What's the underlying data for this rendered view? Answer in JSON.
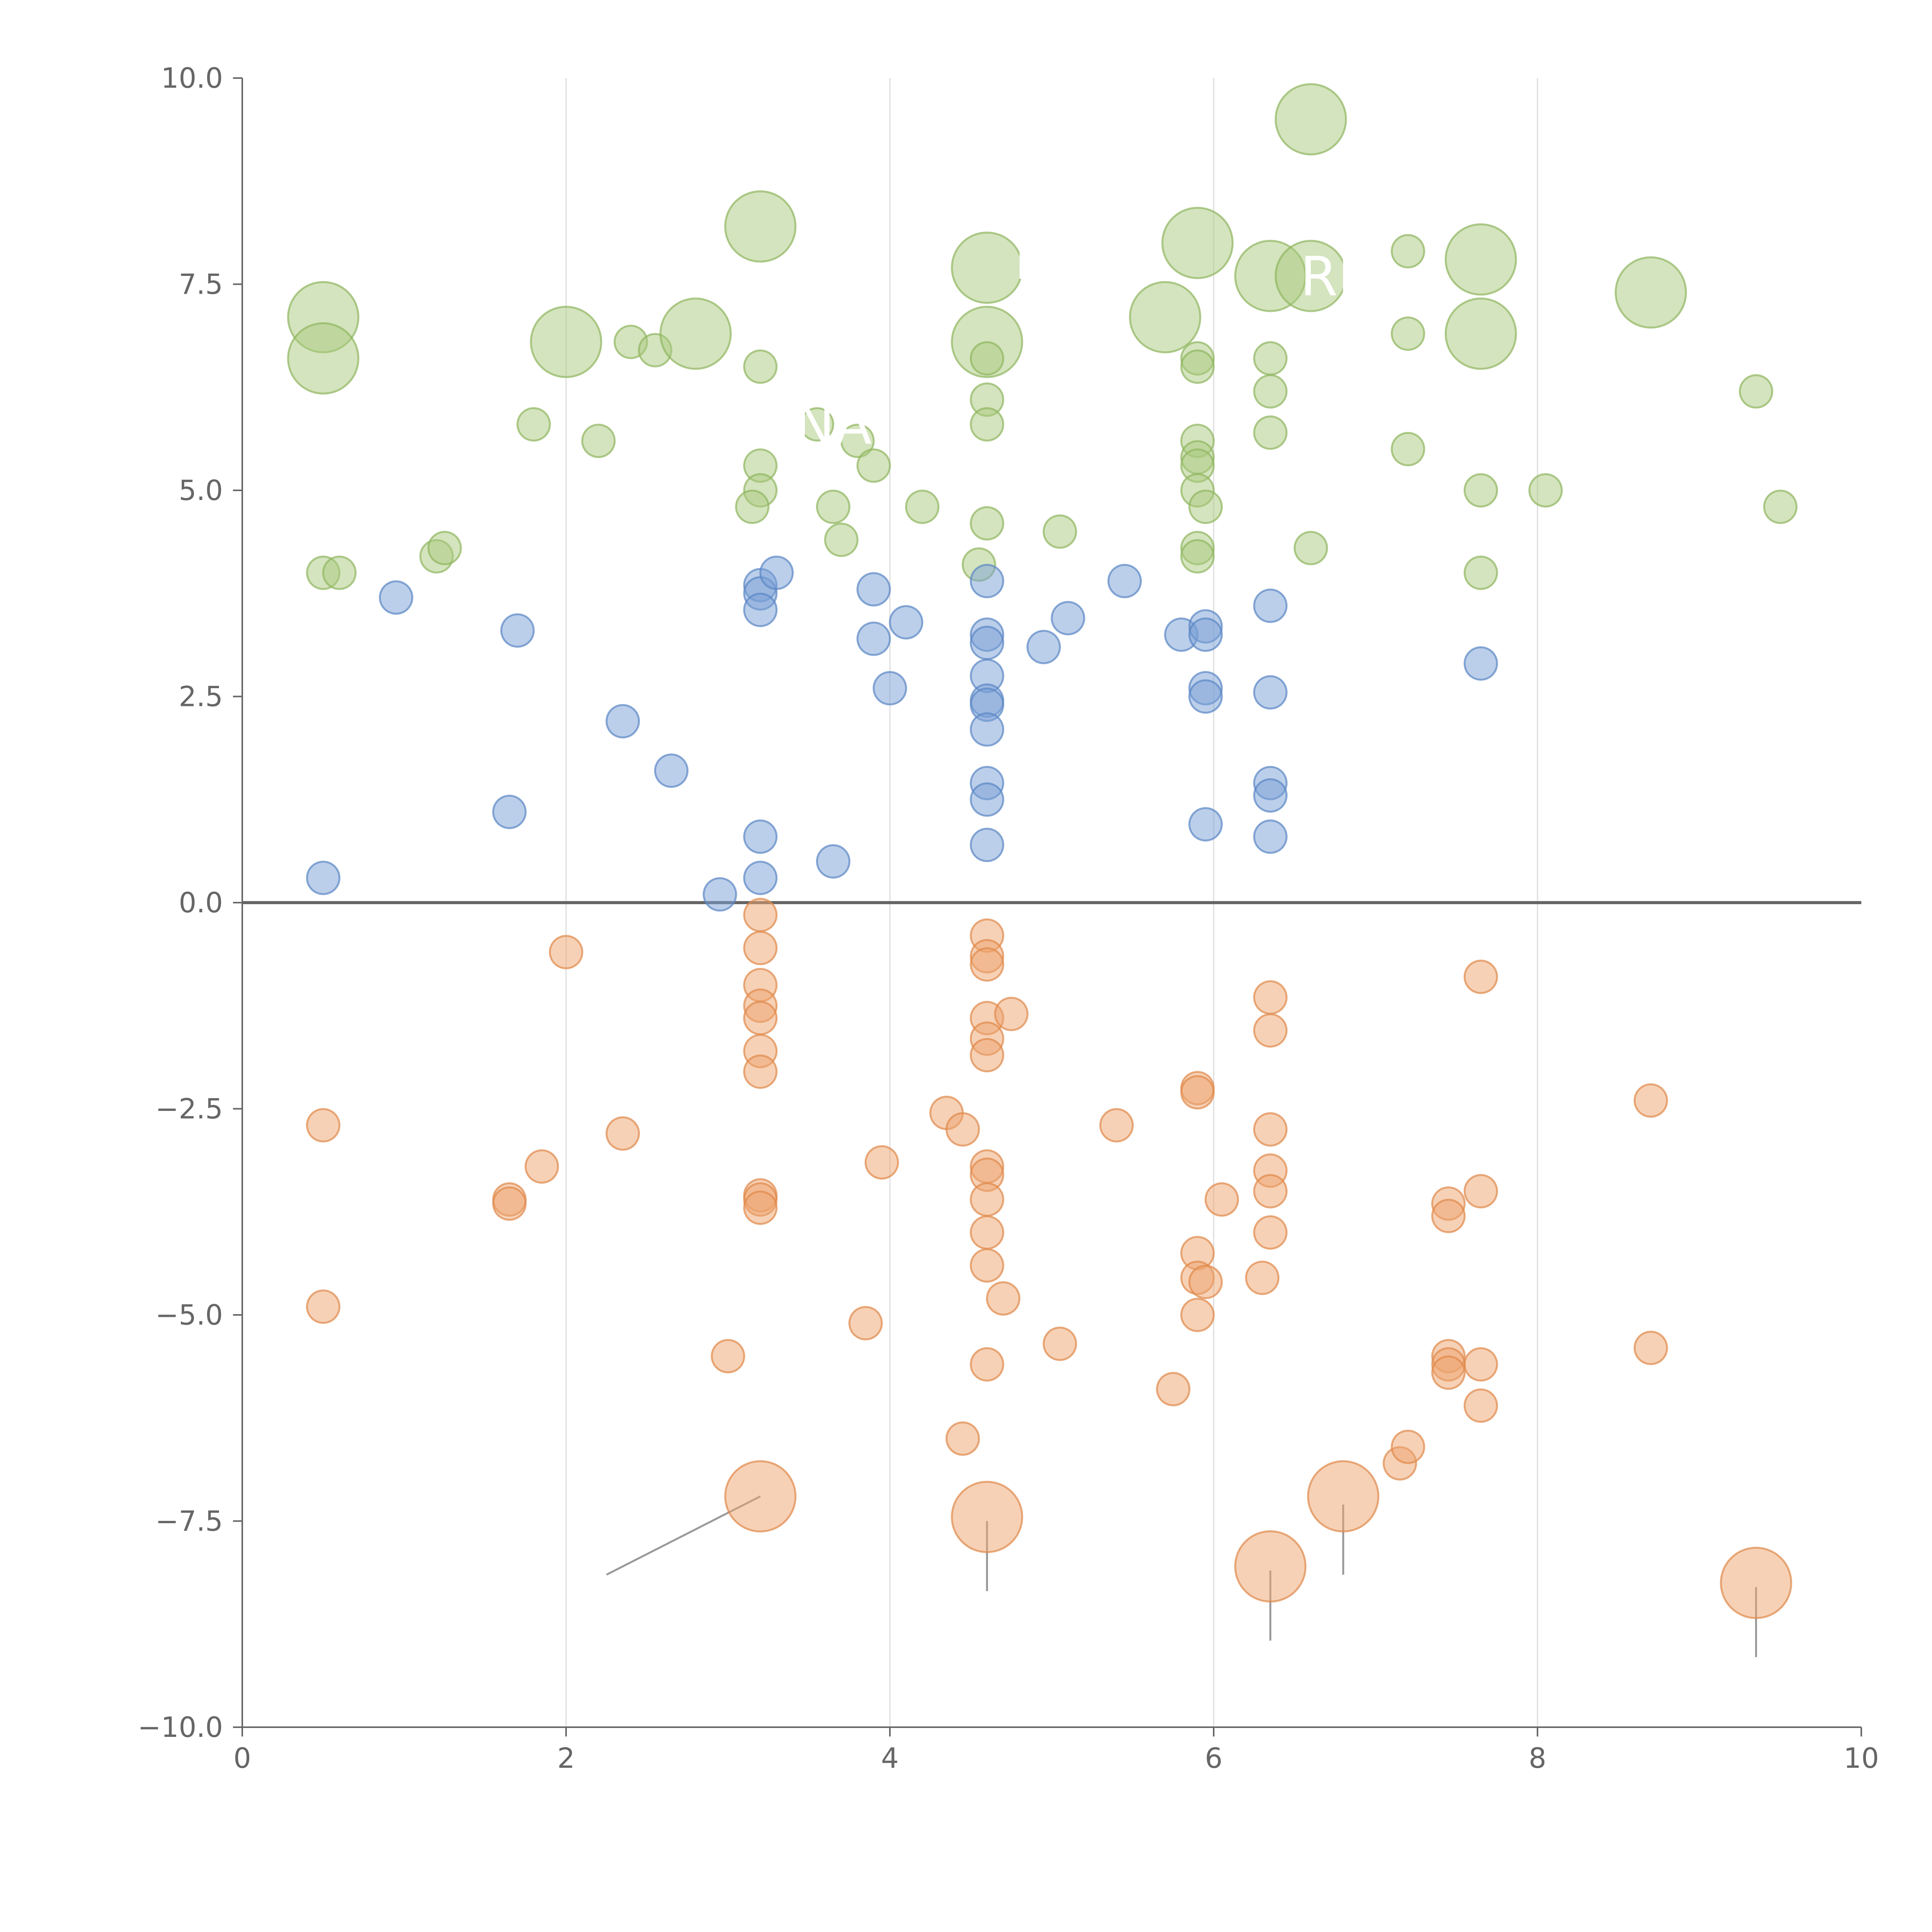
{
  "chart_data": {
    "type": "scatter",
    "title": "",
    "xlabel": "",
    "ylabel": "",
    "xlim": [
      0,
      10
    ],
    "ylim": [
      -10,
      10
    ],
    "x_ticks": [
      0,
      2,
      4,
      6,
      8,
      10
    ],
    "x_tick_labels": [
      "0",
      "2",
      "4",
      "6",
      "8",
      "10"
    ],
    "y_ticks": [
      -10,
      -7.5,
      -5,
      -2.5,
      0,
      2.5,
      5,
      7.5,
      10
    ],
    "y_tick_labels": [
      "−10.0",
      "−7.5",
      "−5.0",
      "−2.5",
      "0.0",
      "2.5",
      "5.0",
      "7.5",
      "10.0"
    ],
    "grid": "vertical",
    "colors": {
      "green": "#a9c97e",
      "green_edge": "#8fb55e",
      "blue": "#7aa0d6",
      "blue_edge": "#5a86c4",
      "orange": "#eea46e",
      "orange_edge": "#e0894a",
      "axis": "#666666",
      "grid": "#dddddd",
      "annotation": "#ffffff",
      "leader": "#999999"
    },
    "annotations": [
      {
        "text": "INA",
        "x": 3.6,
        "y": 5.8
      },
      {
        "text": "HS",
        "x": 5.0,
        "y": 7.8
      },
      {
        "text": "RIP",
        "x": 6.8,
        "y": 7.6
      }
    ],
    "series": [
      {
        "name": "green",
        "points": [
          [
            0.5,
            7.1,
            1.3
          ],
          [
            0.5,
            6.6,
            1.3
          ],
          [
            0.5,
            4.0,
            0.6
          ],
          [
            0.6,
            4.0,
            0.6
          ],
          [
            1.2,
            4.2,
            0.6
          ],
          [
            1.25,
            4.3,
            0.6
          ],
          [
            1.8,
            5.8,
            0.6
          ],
          [
            2.0,
            6.8,
            1.3
          ],
          [
            2.2,
            5.6,
            0.6
          ],
          [
            2.4,
            6.8,
            0.6
          ],
          [
            2.55,
            6.7,
            0.6
          ],
          [
            2.8,
            6.9,
            1.3
          ],
          [
            3.2,
            8.2,
            1.3
          ],
          [
            3.2,
            6.5,
            0.6
          ],
          [
            3.2,
            5.3,
            0.6
          ],
          [
            3.2,
            5.0,
            0.6
          ],
          [
            3.15,
            4.8,
            0.6
          ],
          [
            3.55,
            5.8,
            0.6
          ],
          [
            3.8,
            5.6,
            0.6
          ],
          [
            3.65,
            4.8,
            0.6
          ],
          [
            3.7,
            4.4,
            0.6
          ],
          [
            3.9,
            5.3,
            0.6
          ],
          [
            4.2,
            4.8,
            0.6
          ],
          [
            4.6,
            7.7,
            1.3
          ],
          [
            4.6,
            6.8,
            1.3
          ],
          [
            4.6,
            6.6,
            0.6
          ],
          [
            4.6,
            6.1,
            0.6
          ],
          [
            4.6,
            5.8,
            0.6
          ],
          [
            4.6,
            4.6,
            0.6
          ],
          [
            4.55,
            4.1,
            0.6
          ],
          [
            5.05,
            4.5,
            0.6
          ],
          [
            5.7,
            7.1,
            1.3
          ],
          [
            5.9,
            8.0,
            1.3
          ],
          [
            5.9,
            6.6,
            0.6
          ],
          [
            5.9,
            6.5,
            0.6
          ],
          [
            5.9,
            5.6,
            0.6
          ],
          [
            5.9,
            5.4,
            0.6
          ],
          [
            5.9,
            5.3,
            0.6
          ],
          [
            5.9,
            5.0,
            0.6
          ],
          [
            5.95,
            4.8,
            0.6
          ],
          [
            5.9,
            4.3,
            0.6
          ],
          [
            5.9,
            4.2,
            0.6
          ],
          [
            6.35,
            7.6,
            1.3
          ],
          [
            6.35,
            6.6,
            0.6
          ],
          [
            6.35,
            6.2,
            0.6
          ],
          [
            6.35,
            5.7,
            0.6
          ],
          [
            6.6,
            9.5,
            1.3
          ],
          [
            6.6,
            7.6,
            1.3
          ],
          [
            6.6,
            4.3,
            0.6
          ],
          [
            7.2,
            7.9,
            0.6
          ],
          [
            7.2,
            6.9,
            0.6
          ],
          [
            7.2,
            5.5,
            0.6
          ],
          [
            7.65,
            7.8,
            1.3
          ],
          [
            7.65,
            6.9,
            1.3
          ],
          [
            7.65,
            5.0,
            0.6
          ],
          [
            7.65,
            4.0,
            0.6
          ],
          [
            8.05,
            5.0,
            0.6
          ],
          [
            8.7,
            7.4,
            1.3
          ],
          [
            9.35,
            6.2,
            0.6
          ],
          [
            9.5,
            4.8,
            0.6
          ]
        ]
      },
      {
        "name": "blue",
        "points": [
          [
            0.5,
            0.3,
            0.6
          ],
          [
            0.95,
            3.7,
            0.6
          ],
          [
            1.65,
            1.1,
            0.6
          ],
          [
            1.7,
            3.3,
            0.6
          ],
          [
            2.35,
            2.2,
            0.6
          ],
          [
            2.65,
            1.6,
            0.6
          ],
          [
            2.95,
            0.1,
            0.6
          ],
          [
            3.2,
            3.85,
            0.6
          ],
          [
            3.2,
            3.75,
            0.6
          ],
          [
            3.2,
            3.55,
            0.6
          ],
          [
            3.3,
            4.0,
            0.6
          ],
          [
            3.2,
            0.8,
            0.6
          ],
          [
            3.2,
            0.3,
            0.6
          ],
          [
            3.65,
            0.5,
            0.6
          ],
          [
            3.9,
            3.8,
            0.6
          ],
          [
            3.9,
            3.2,
            0.6
          ],
          [
            4.1,
            3.4,
            0.6
          ],
          [
            4.0,
            2.6,
            0.6
          ],
          [
            4.6,
            3.9,
            0.6
          ],
          [
            4.6,
            3.25,
            0.6
          ],
          [
            4.6,
            3.15,
            0.6
          ],
          [
            4.6,
            2.75,
            0.6
          ],
          [
            4.6,
            2.45,
            0.6
          ],
          [
            4.6,
            2.4,
            0.6
          ],
          [
            4.6,
            2.1,
            0.6
          ],
          [
            4.6,
            1.45,
            0.6
          ],
          [
            4.6,
            1.25,
            0.6
          ],
          [
            4.6,
            0.7,
            0.6
          ],
          [
            4.95,
            3.1,
            0.6
          ],
          [
            5.1,
            3.45,
            0.6
          ],
          [
            5.45,
            3.9,
            0.6
          ],
          [
            5.8,
            3.25,
            0.6
          ],
          [
            5.95,
            3.35,
            0.6
          ],
          [
            5.95,
            3.25,
            0.6
          ],
          [
            5.95,
            2.6,
            0.6
          ],
          [
            5.95,
            2.5,
            0.6
          ],
          [
            5.95,
            0.95,
            0.6
          ],
          [
            6.35,
            3.6,
            0.6
          ],
          [
            6.35,
            2.55,
            0.6
          ],
          [
            6.35,
            1.45,
            0.6
          ],
          [
            6.35,
            1.3,
            0.6
          ],
          [
            6.35,
            0.8,
            0.6
          ],
          [
            7.65,
            2.9,
            0.6
          ]
        ]
      },
      {
        "name": "orange",
        "points": [
          [
            0.5,
            -2.7,
            0.6
          ],
          [
            0.5,
            -4.9,
            0.6
          ],
          [
            1.65,
            -3.6,
            0.6
          ],
          [
            1.65,
            -3.65,
            0.6
          ],
          [
            1.85,
            -3.2,
            0.6
          ],
          [
            2.0,
            -0.6,
            0.6
          ],
          [
            2.35,
            -2.8,
            0.6
          ],
          [
            3.0,
            -5.5,
            0.6
          ],
          [
            3.2,
            -0.15,
            0.6
          ],
          [
            3.2,
            -0.55,
            0.6
          ],
          [
            3.2,
            -1.0,
            0.6
          ],
          [
            3.2,
            -1.25,
            0.6
          ],
          [
            3.2,
            -1.4,
            0.6
          ],
          [
            3.2,
            -1.8,
            0.6
          ],
          [
            3.2,
            -2.05,
            0.6
          ],
          [
            3.2,
            -3.55,
            0.6
          ],
          [
            3.2,
            -3.6,
            0.6
          ],
          [
            3.2,
            -3.7,
            0.6
          ],
          [
            3.2,
            -7.2,
            1.3
          ],
          [
            3.85,
            -5.1,
            0.6
          ],
          [
            3.95,
            -3.15,
            0.6
          ],
          [
            4.35,
            -2.55,
            0.6
          ],
          [
            4.45,
            -2.75,
            0.6
          ],
          [
            4.45,
            -6.5,
            0.6
          ],
          [
            4.6,
            -0.4,
            0.6
          ],
          [
            4.6,
            -0.65,
            0.6
          ],
          [
            4.6,
            -0.75,
            0.6
          ],
          [
            4.6,
            -1.4,
            0.6
          ],
          [
            4.6,
            -1.65,
            0.6
          ],
          [
            4.6,
            -1.85,
            0.6
          ],
          [
            4.75,
            -1.35,
            0.6
          ],
          [
            4.6,
            -3.2,
            0.6
          ],
          [
            4.6,
            -3.3,
            0.6
          ],
          [
            4.6,
            -3.6,
            0.6
          ],
          [
            4.6,
            -4.0,
            0.6
          ],
          [
            4.6,
            -4.4,
            0.6
          ],
          [
            4.7,
            -4.8,
            0.6
          ],
          [
            4.6,
            -5.6,
            0.6
          ],
          [
            4.6,
            -7.45,
            1.3
          ],
          [
            5.05,
            -5.35,
            0.6
          ],
          [
            5.4,
            -2.7,
            0.6
          ],
          [
            5.75,
            -5.9,
            0.6
          ],
          [
            5.9,
            -2.25,
            0.6
          ],
          [
            5.9,
            -2.3,
            0.6
          ],
          [
            6.05,
            -3.6,
            0.6
          ],
          [
            5.9,
            -4.25,
            0.6
          ],
          [
            5.9,
            -4.55,
            0.6
          ],
          [
            5.95,
            -4.6,
            0.6
          ],
          [
            5.9,
            -5.0,
            0.6
          ],
          [
            6.35,
            -1.15,
            0.6
          ],
          [
            6.35,
            -1.55,
            0.6
          ],
          [
            6.35,
            -2.75,
            0.6
          ],
          [
            6.35,
            -3.25,
            0.6
          ],
          [
            6.35,
            -3.5,
            0.6
          ],
          [
            6.35,
            -4.0,
            0.6
          ],
          [
            6.3,
            -4.55,
            0.6
          ],
          [
            6.35,
            -8.05,
            1.3
          ],
          [
            6.8,
            -7.2,
            1.3
          ],
          [
            7.15,
            -6.8,
            0.6
          ],
          [
            7.2,
            -6.6,
            0.6
          ],
          [
            7.45,
            -3.65,
            0.6
          ],
          [
            7.45,
            -3.8,
            0.6
          ],
          [
            7.45,
            -5.5,
            0.6
          ],
          [
            7.45,
            -5.6,
            0.6
          ],
          [
            7.45,
            -5.7,
            0.6
          ],
          [
            7.65,
            -0.9,
            0.6
          ],
          [
            7.65,
            -3.5,
            0.6
          ],
          [
            7.65,
            -5.6,
            0.6
          ],
          [
            7.65,
            -6.1,
            0.6
          ],
          [
            8.7,
            -2.4,
            0.6
          ],
          [
            8.7,
            -5.4,
            0.6
          ],
          [
            9.35,
            -8.25,
            1.3
          ]
        ]
      }
    ],
    "leader_lines": [
      [
        [
          3.2,
          -7.2
        ],
        [
          2.25,
          -8.15
        ]
      ],
      [
        [
          4.6,
          -7.5
        ],
        [
          4.6,
          -8.35
        ]
      ],
      [
        [
          6.35,
          -8.1
        ],
        [
          6.35,
          -8.95
        ]
      ],
      [
        [
          6.8,
          -7.3
        ],
        [
          6.8,
          -8.15
        ]
      ],
      [
        [
          9.35,
          -8.3
        ],
        [
          9.35,
          -9.15
        ]
      ]
    ]
  }
}
